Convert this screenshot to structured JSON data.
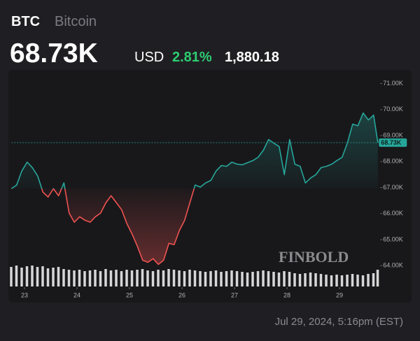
{
  "header": {
    "symbol": "BTC",
    "name": "Bitcoin",
    "price": "68.73K",
    "currency": "USD",
    "change_percent": "2.81%",
    "change_value": "1,880.18"
  },
  "chart_data": {
    "type": "line",
    "x": [
      22.75,
      22.85,
      22.95,
      23.05,
      23.15,
      23.25,
      23.35,
      23.45,
      23.55,
      23.65,
      23.75,
      23.85,
      23.95,
      24.05,
      24.15,
      24.25,
      24.35,
      24.45,
      24.55,
      24.65,
      24.75,
      24.85,
      24.95,
      25.05,
      25.15,
      25.25,
      25.35,
      25.45,
      25.55,
      25.65,
      25.75,
      25.85,
      25.95,
      26.05,
      26.15,
      26.25,
      26.35,
      26.45,
      26.55,
      26.65,
      26.75,
      26.85,
      26.95,
      27.05,
      27.15,
      27.25,
      27.35,
      27.45,
      27.55,
      27.65,
      27.75,
      27.85,
      27.95,
      28.05,
      28.15,
      28.25,
      28.35,
      28.45,
      28.55,
      28.65,
      28.75,
      28.85,
      28.95,
      29.05,
      29.15,
      29.25,
      29.35,
      29.45,
      29.55,
      29.65,
      29.73
    ],
    "values": [
      66.96,
      67.1,
      67.64,
      67.98,
      67.77,
      67.45,
      66.83,
      66.64,
      66.96,
      66.69,
      67.18,
      66.02,
      65.67,
      65.88,
      65.75,
      65.67,
      65.88,
      66.02,
      66.42,
      66.69,
      66.42,
      66.15,
      65.62,
      65.21,
      64.75,
      64.21,
      64.13,
      64.27,
      64.05,
      64.21,
      64.86,
      64.81,
      65.35,
      65.75,
      66.42,
      67.1,
      67.02,
      67.18,
      67.28,
      67.64,
      67.85,
      67.82,
      67.98,
      67.9,
      67.88,
      67.96,
      68.04,
      68.17,
      68.44,
      68.85,
      68.71,
      68.58,
      67.5,
      68.85,
      67.9,
      67.82,
      67.18,
      67.37,
      67.5,
      67.77,
      67.82,
      67.9,
      68.04,
      68.17,
      68.71,
      69.44,
      69.38,
      69.87,
      69.6,
      69.79,
      68.73
    ],
    "volume": [
      28,
      30,
      27,
      29,
      30,
      28,
      29,
      26,
      27,
      28,
      25,
      24,
      23,
      24,
      22,
      23,
      24,
      22,
      25,
      23,
      24,
      22,
      24,
      23,
      24,
      25,
      23,
      22,
      24,
      23,
      25,
      24,
      23,
      22,
      24,
      23,
      22,
      21,
      22,
      23,
      21,
      22,
      23,
      22,
      21,
      20,
      21,
      22,
      23,
      22,
      21,
      20,
      22,
      21,
      19,
      18,
      19,
      20,
      19,
      18,
      17,
      16,
      17,
      16,
      17,
      18,
      17,
      16,
      18,
      19,
      24
    ],
    "xlim": [
      22.75,
      29.75
    ],
    "xticks": [
      23,
      24,
      25,
      26,
      27,
      28,
      29
    ],
    "ylim": [
      63.2,
      71.5
    ],
    "yticks": [
      {
        "value": 64,
        "label": "64.00K"
      },
      {
        "value": 65,
        "label": "65.00K"
      },
      {
        "value": 66,
        "label": "66.00K"
      },
      {
        "value": 67,
        "label": "67.00K"
      },
      {
        "value": 68,
        "label": "68.00K"
      },
      {
        "value": 69,
        "label": "69.00K"
      },
      {
        "value": 70,
        "label": "70.00K"
      },
      {
        "value": 71,
        "label": "71.00K"
      }
    ],
    "colors": {
      "up": "#26a69a",
      "down": "#ef5350",
      "volume": "#d6d6d6"
    }
  },
  "watermark": "FINBOLD",
  "timestamp": "Jul 29, 2024, 5:16pm (EST)"
}
